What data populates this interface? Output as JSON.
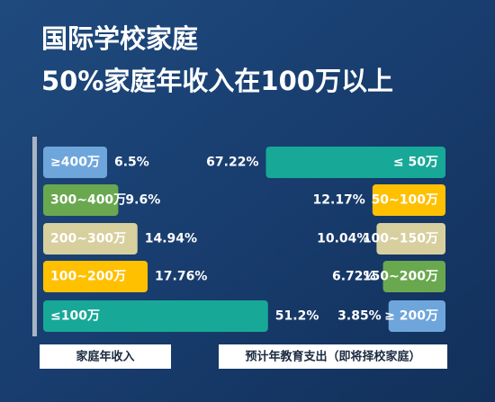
{
  "title": [
    "国际学校家庭",
    "50%家庭年收入在100万以上"
  ],
  "chart_data": [
    {
      "type": "bar",
      "orientation": "horizontal",
      "align": "left",
      "label": "家庭年收入",
      "categories": [
        "≥400万",
        "300~400万",
        "200~300万",
        "100~200万",
        "≤100万"
      ],
      "values": [
        6.5,
        9.6,
        14.94,
        17.76,
        51.2
      ],
      "value_labels": [
        "6.5%",
        "9.6%",
        "14.94%",
        "17.76%",
        "51.2%"
      ],
      "colors": [
        "#6ea6dc",
        "#6aa84f",
        "#d8cf9f",
        "#ffc000",
        "#17a898"
      ]
    },
    {
      "type": "bar",
      "orientation": "horizontal",
      "align": "right",
      "label": "预计年教育支出（即将择校家庭）",
      "categories": [
        "≤ 50万",
        "50~100万",
        "100~150万",
        "150~200万",
        "≥ 200万"
      ],
      "values": [
        67.22,
        12.17,
        10.04,
        6.72,
        3.85
      ],
      "value_labels": [
        "67.22%",
        "12.17%",
        "10.04%",
        "6.72%",
        "3.85%"
      ],
      "colors": [
        "#17a898",
        "#ffc000",
        "#d8cf9f",
        "#6aa84f",
        "#6ea6dc"
      ]
    }
  ]
}
